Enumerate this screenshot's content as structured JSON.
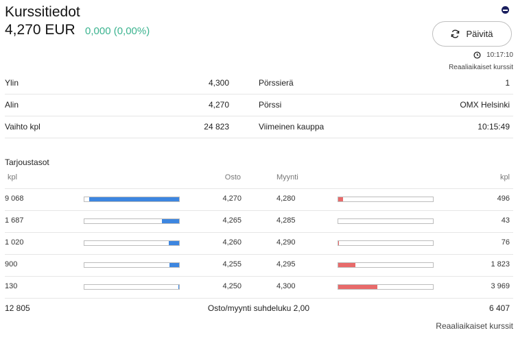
{
  "header": {
    "title": "Kurssitiedot",
    "price": "4,270 EUR",
    "change": "0,000 (0,00%)",
    "refresh_label": "Päivitä",
    "time": "10:17:10",
    "realtime_note": "Reaaliaikaiset kurssit"
  },
  "stats": {
    "high_label": "Ylin",
    "high_value": "4,300",
    "low_label": "Alin",
    "low_value": "4,270",
    "volume_label": "Vaihto kpl",
    "volume_value": "24 823",
    "lot_label": "Pörssierä",
    "lot_value": "1",
    "exchange_label": "Pörssi",
    "exchange_value": "OMX Helsinki",
    "last_trade_label": "Viimeinen kauppa",
    "last_trade_value": "10:15:49"
  },
  "order_book": {
    "title": "Tarjoustasot",
    "col_qty_buy": "kpl",
    "col_buy": "Osto",
    "col_sell": "Myynti",
    "col_qty_sell": "kpl",
    "rows": [
      {
        "buy_qty": "9 068",
        "buy_fill": 0.95,
        "buy_price": "4,270",
        "sell_price": "4,280",
        "sell_fill": 0.05,
        "sell_qty": "496"
      },
      {
        "buy_qty": "1 687",
        "buy_fill": 0.18,
        "buy_price": "4,265",
        "sell_price": "4,285",
        "sell_fill": 0.0,
        "sell_qty": "43"
      },
      {
        "buy_qty": "1 020",
        "buy_fill": 0.11,
        "buy_price": "4,260",
        "sell_price": "4,290",
        "sell_fill": 0.01,
        "sell_qty": "76"
      },
      {
        "buy_qty": "900",
        "buy_fill": 0.1,
        "buy_price": "4,255",
        "sell_price": "4,295",
        "sell_fill": 0.18,
        "sell_qty": "1 823"
      },
      {
        "buy_qty": "130",
        "buy_fill": 0.01,
        "buy_price": "4,250",
        "sell_price": "4,300",
        "sell_fill": 0.41,
        "sell_qty": "3 969"
      }
    ],
    "total_buy": "12 805",
    "ratio_text": "Osto/myynti suhdeluku 2,00",
    "total_sell": "6 407",
    "realtime_note": "Reaaliaikaiset kurssit"
  },
  "colors": {
    "positive": "#3bb38f",
    "buy_bar": "#3d86e0",
    "sell_bar": "#e86a6a"
  }
}
